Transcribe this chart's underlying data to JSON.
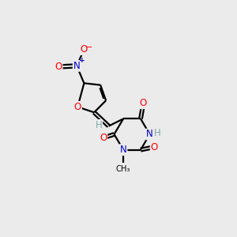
{
  "bg_color": "#ebebeb",
  "bond_color": "#000000",
  "O_color": "#ff0000",
  "N_color": "#0000cd",
  "H_color": "#7fa8a8",
  "C_color": "#000000",
  "lw": 1.6,
  "fs": 8.5,
  "xlim": [
    0,
    10
  ],
  "ylim": [
    0,
    10
  ]
}
